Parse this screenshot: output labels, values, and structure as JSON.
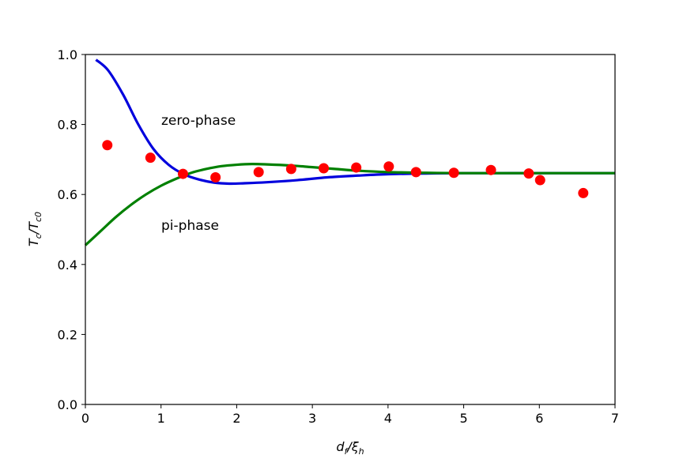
{
  "chart_data": {
    "type": "line",
    "xlabel_main": "d",
    "xlabel_sub1": "f",
    "xlabel_mid": "/ξ",
    "xlabel_sub2": "h",
    "ylabel_main": "T",
    "ylabel_sub1": "c",
    "ylabel_mid": "/T",
    "ylabel_sub2": "c0",
    "xlim": [
      0,
      7
    ],
    "ylim": [
      0,
      1.0
    ],
    "xticks": [
      0,
      1,
      2,
      3,
      4,
      5,
      6,
      7
    ],
    "xtick_labels": [
      "0",
      "1",
      "2",
      "3",
      "4",
      "5",
      "6",
      "7"
    ],
    "yticks": [
      0.0,
      0.2,
      0.4,
      0.6,
      0.8,
      1.0
    ],
    "ytick_labels": [
      "0.0",
      "0.2",
      "0.4",
      "0.6",
      "0.8",
      "1.0"
    ],
    "annotations": [
      {
        "text": "zero-phase",
        "x": 1.0,
        "y": 0.8
      },
      {
        "text": "pi-phase",
        "x": 1.0,
        "y": 0.5
      }
    ],
    "series": [
      {
        "kind": "line",
        "color": "#0000dd",
        "x": [
          0.14,
          0.3,
          0.5,
          0.7,
          0.9,
          1.1,
          1.3,
          1.5,
          1.7,
          1.9,
          2.1,
          2.4,
          2.8,
          3.2,
          3.6,
          4.0,
          4.5,
          5.0,
          6.0,
          7.0
        ],
        "y": [
          0.985,
          0.955,
          0.885,
          0.8,
          0.73,
          0.685,
          0.658,
          0.643,
          0.634,
          0.631,
          0.632,
          0.635,
          0.641,
          0.649,
          0.654,
          0.658,
          0.66,
          0.661,
          0.661,
          0.661
        ]
      },
      {
        "kind": "line",
        "color": "#008000",
        "x": [
          0.0,
          0.2,
          0.4,
          0.6,
          0.8,
          1.0,
          1.2,
          1.4,
          1.6,
          1.8,
          2.0,
          2.2,
          2.4,
          2.7,
          3.0,
          3.3,
          3.6,
          4.0,
          4.5,
          5.0,
          6.0,
          7.0
        ],
        "y": [
          0.455,
          0.495,
          0.535,
          0.57,
          0.6,
          0.625,
          0.645,
          0.662,
          0.673,
          0.681,
          0.685,
          0.687,
          0.686,
          0.683,
          0.678,
          0.673,
          0.668,
          0.664,
          0.662,
          0.661,
          0.661,
          0.661
        ]
      },
      {
        "kind": "scatter",
        "color": "#ff0000",
        "x": [
          0.29,
          0.86,
          1.29,
          1.72,
          2.29,
          2.72,
          3.15,
          3.58,
          4.01,
          4.37,
          4.87,
          5.36,
          5.86,
          6.01,
          6.58
        ],
        "y": [
          0.741,
          0.705,
          0.659,
          0.649,
          0.664,
          0.673,
          0.675,
          0.677,
          0.68,
          0.664,
          0.662,
          0.67,
          0.66,
          0.641,
          0.604
        ]
      }
    ]
  }
}
